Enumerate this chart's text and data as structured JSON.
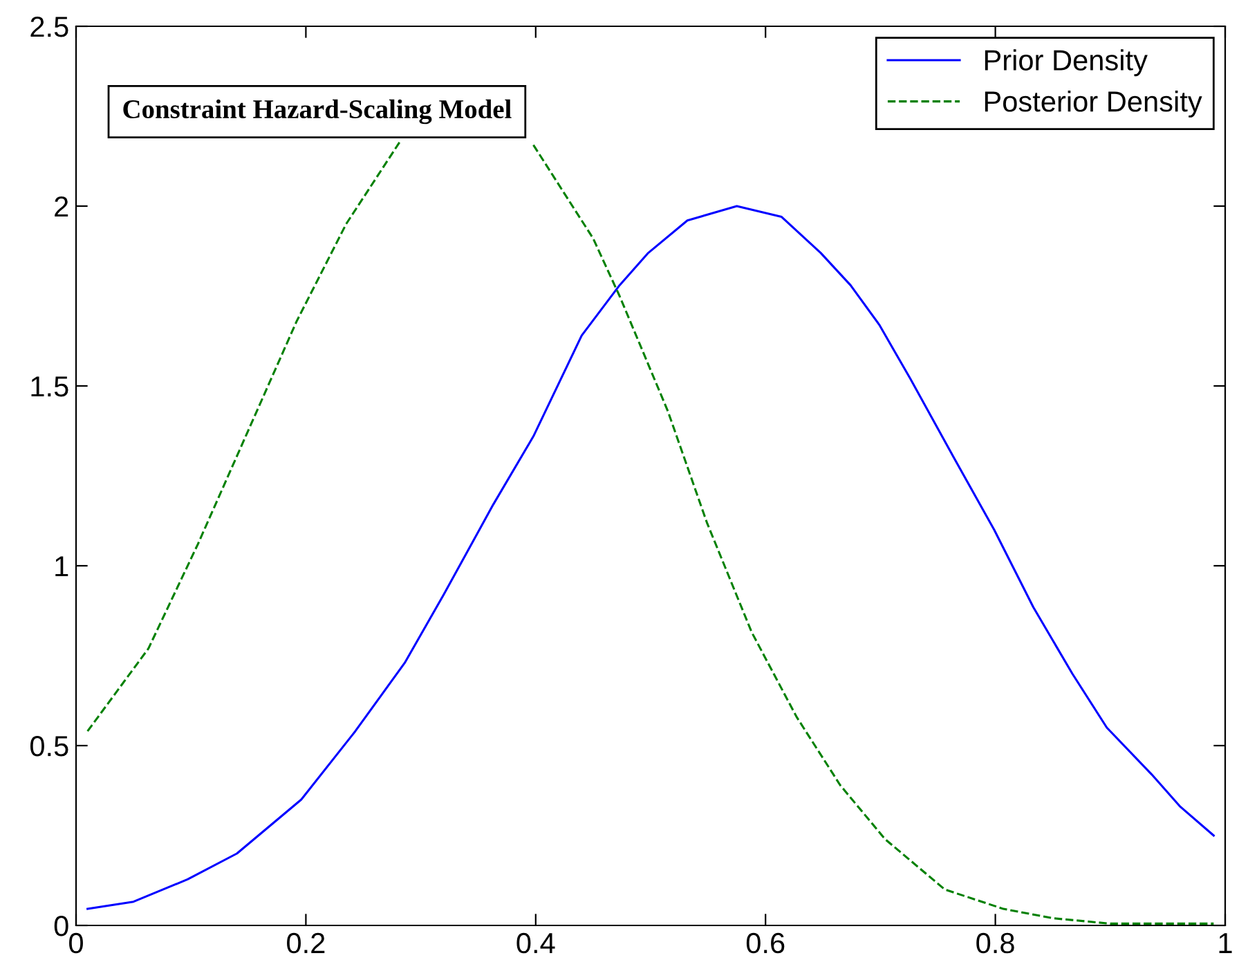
{
  "chart_data": {
    "type": "line",
    "xlim": [
      0,
      1
    ],
    "ylim": [
      0,
      2.5
    ],
    "xticks": [
      0,
      0.2,
      0.4,
      0.6,
      0.8,
      1
    ],
    "yticks": [
      0,
      0.5,
      1,
      1.5,
      2,
      2.5
    ],
    "grid": false,
    "legend": "top right",
    "marker": "none",
    "annotations": [
      "Constraint Hazard-Scaling Model"
    ],
    "series": [
      {
        "name": "Prior Density",
        "color": "#0000ff",
        "line_style": "solid",
        "x": [
          0.01,
          0.05,
          0.097,
          0.14,
          0.196,
          0.243,
          0.286,
          0.32,
          0.363,
          0.398,
          0.44,
          0.473,
          0.498,
          0.532,
          0.575,
          0.614,
          0.648,
          0.674,
          0.699,
          0.726,
          0.764,
          0.799,
          0.833,
          0.867,
          0.897,
          0.936,
          0.961,
          0.99
        ],
        "values": [
          0.046,
          0.066,
          0.128,
          0.2,
          0.35,
          0.54,
          0.73,
          0.92,
          1.17,
          1.36,
          1.64,
          1.78,
          1.87,
          1.96,
          2.0,
          1.97,
          1.87,
          1.78,
          1.67,
          1.52,
          1.3,
          1.1,
          0.885,
          0.7,
          0.55,
          0.42,
          0.33,
          0.25
        ]
      },
      {
        "name": "Posterior Density",
        "color": "#008000",
        "line_style": "dashed",
        "x": [
          0.01,
          0.063,
          0.106,
          0.149,
          0.192,
          0.235,
          0.282,
          0.34,
          0.398,
          0.45,
          0.473,
          0.515,
          0.549,
          0.588,
          0.627,
          0.665,
          0.704,
          0.756,
          0.807,
          0.85,
          0.9,
          0.99
        ],
        "values": [
          0.54,
          0.77,
          1.06,
          1.37,
          1.68,
          1.95,
          2.18,
          null,
          2.17,
          1.91,
          1.75,
          1.43,
          1.12,
          0.815,
          0.58,
          0.39,
          0.24,
          0.1,
          0.046,
          0.02,
          0.005,
          0.005
        ]
      }
    ]
  }
}
